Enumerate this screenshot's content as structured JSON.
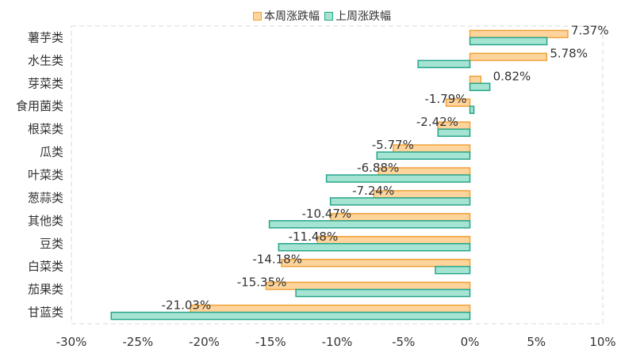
{
  "chart_data": {
    "type": "bar",
    "orientation": "horizontal",
    "categories": [
      "薯芋类",
      "水生类",
      "芽菜类",
      "食用菌类",
      "根菜类",
      "瓜类",
      "叶菜类",
      "葱蒜类",
      "其他类",
      "豆类",
      "白菜类",
      "茄果类",
      "甘蓝类"
    ],
    "series": [
      {
        "name": "本周涨跌幅",
        "values": [
          7.37,
          5.78,
          0.82,
          -1.79,
          -2.42,
          -5.77,
          -6.88,
          -7.24,
          -10.47,
          -11.48,
          -14.18,
          -15.35,
          -21.03
        ],
        "labels": [
          "7.37%",
          "5.78%",
          "0.82%",
          "-1.79%",
          "-2.42%",
          "-5.77%",
          "-6.88%",
          "-7.24%",
          "-10.47%",
          "-11.48%",
          "-14.18%",
          "-15.35%",
          "-21.03%"
        ],
        "fill": "#fdd49b",
        "stroke": "#f0a23a"
      },
      {
        "name": "上周涨跌幅",
        "values": [
          5.8,
          -3.9,
          1.5,
          0.3,
          -2.4,
          -7.0,
          -10.8,
          -10.5,
          -15.1,
          -14.4,
          -2.6,
          -13.1,
          -27.0
        ],
        "fill": "#a5e3d2",
        "stroke": "#27a58a"
      }
    ],
    "xlim": [
      -30,
      10
    ],
    "xticks": [
      "-30%",
      "-25%",
      "-20%",
      "-15%",
      "-10%",
      "-5%",
      "0%",
      "5%",
      "10%"
    ],
    "grid": false,
    "legend_position": "top-center",
    "title": "",
    "xlabel": "",
    "ylabel": ""
  }
}
